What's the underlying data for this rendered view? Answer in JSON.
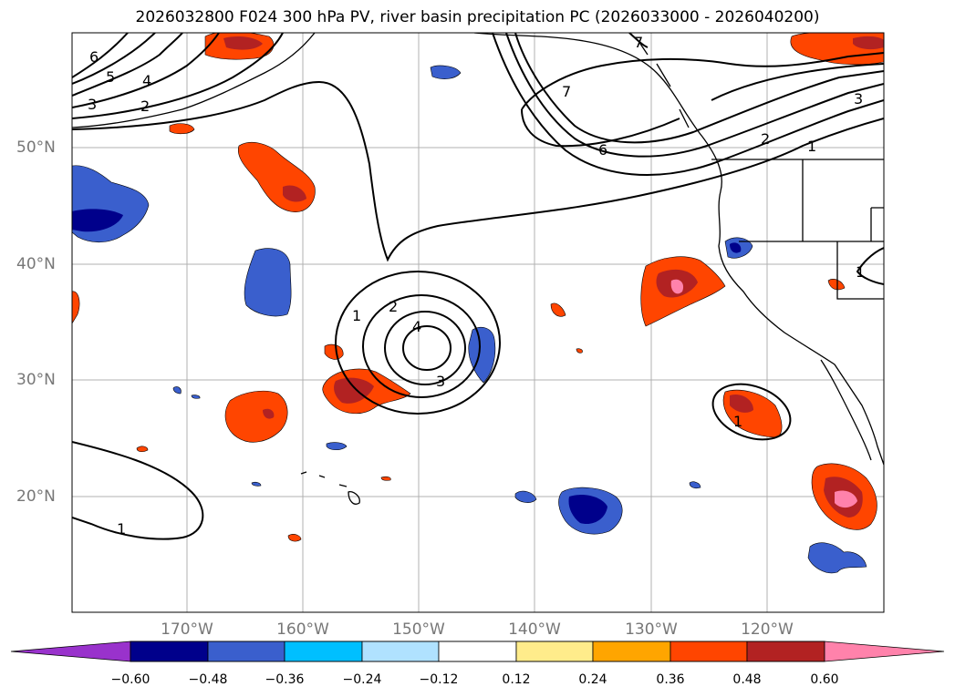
{
  "title": "2026032800 F024 300 hPa PV, river basin precipitation PC (2026033000 - 2026040200)",
  "lat_labels": [
    "50°N",
    "40°N",
    "30°N",
    "20°N"
  ],
  "lon_labels": [
    "170°W",
    "160°W",
    "150°W",
    "140°W",
    "130°W",
    "120°W"
  ],
  "colorbar": {
    "colors": [
      "#9932cc",
      "#00008b",
      "#3a5fcd",
      "#00bfff",
      "#b0e2ff",
      "#ffffff",
      "#ffec8b",
      "#ffa500",
      "#ff4500",
      "#b22222",
      "#ff82ab"
    ],
    "tick_labels": [
      "−0.60",
      "−0.48",
      "−0.36",
      "−0.24",
      "−0.12",
      "0.12",
      "0.24",
      "0.36",
      "0.48",
      "0.60"
    ]
  },
  "contour_labels": [
    "6",
    "5",
    "4",
    "3",
    "2",
    "7",
    "7",
    "6",
    "2",
    "1",
    "3",
    "1",
    "2",
    "4",
    "3",
    "1",
    "1",
    "1"
  ]
}
